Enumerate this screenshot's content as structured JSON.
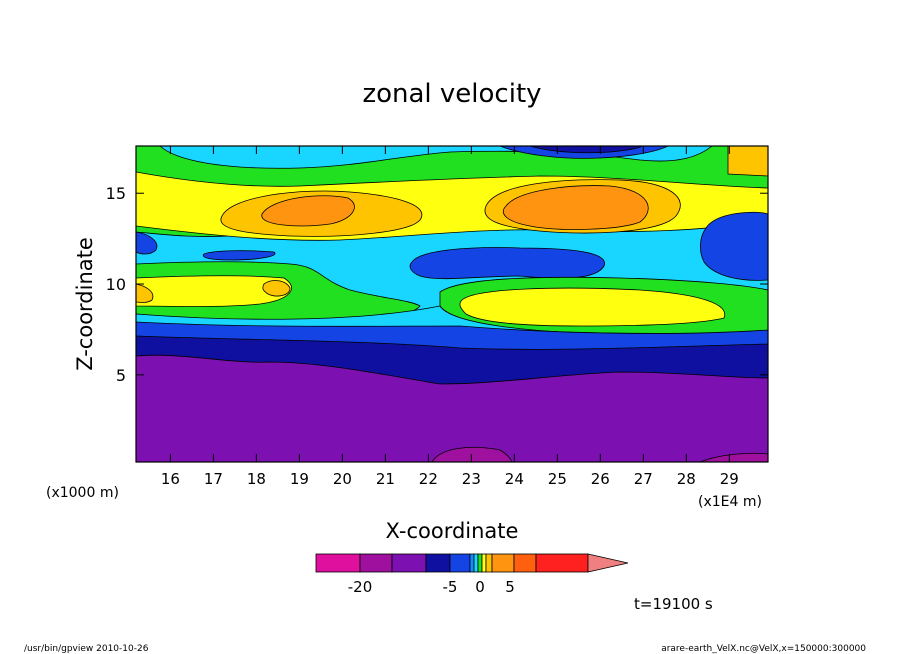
{
  "chart_data": {
    "type": "contour",
    "title": "zonal velocity",
    "xlabel": "X-coordinate",
    "ylabel": "Z-coordinate",
    "x_unit_left": "(x1000 m)",
    "x_unit_right": "(x1E4 m)",
    "xlim": [
      15.2,
      29.9
    ],
    "ylim": [
      0.2,
      17.6
    ],
    "x_ticks": [
      16,
      17,
      18,
      19,
      20,
      21,
      22,
      23,
      24,
      25,
      26,
      27,
      28,
      29
    ],
    "y_ticks": [
      5,
      10,
      15
    ],
    "colorbar": {
      "colors": [
        "#e0109e",
        "#a0109e",
        "#7c10b0",
        "#1010a0",
        "#1444e4",
        "#0f8fff",
        "#18d6ff",
        "#20e020",
        "#ffff10",
        "#ffc400",
        "#ff9410",
        "#ff6010",
        "#ff2020",
        "#f08080"
      ],
      "labels": [
        "-20",
        "-5",
        "0",
        "5"
      ],
      "label_values": [
        -20,
        -5,
        0,
        5
      ],
      "overflow_color": "#f08080"
    },
    "time_label": "t=19100 s"
  },
  "footer": {
    "left": "/usr/bin/gpview   2010-10-26",
    "right": "arare-earth_VelX.nc@VelX,x=150000:300000"
  }
}
